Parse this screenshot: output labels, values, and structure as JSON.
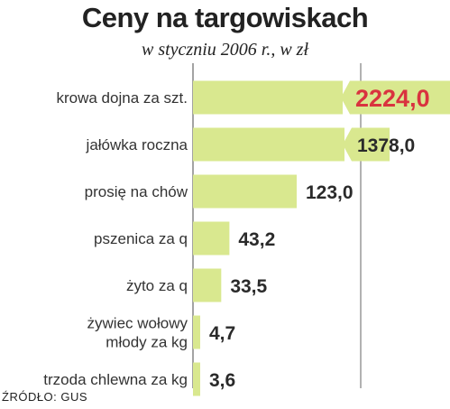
{
  "header": {
    "title": "Ceny na targowiskach",
    "subtitle": "w styczniu 2006 r., w zł"
  },
  "footer": {
    "source": "ŹRÓDŁO: GUS"
  },
  "colors": {
    "bar": "#d9e88f",
    "highlight_text": "#d9333f",
    "text": "#2a2a2a",
    "gridline": "#666666"
  },
  "chart_data": {
    "type": "bar",
    "orientation": "horizontal",
    "scale": "broken for the two largest values (bars cut)",
    "categories": [
      "krowa dojna za szt.",
      "jałówka roczna",
      "prosię na chów",
      "pszenica za q",
      "żyto za q",
      "żywiec wołowy\nmłody za kg",
      "trzoda chlewna za kg"
    ],
    "values": [
      2224.0,
      1378.0,
      123.0,
      43.2,
      33.5,
      4.7,
      3.6
    ],
    "value_labels": [
      "2224,0",
      "1378,0",
      "123,0",
      "43,2",
      "33,5",
      "4,7",
      "3,6"
    ],
    "highlight_index": 0,
    "grid": true
  }
}
